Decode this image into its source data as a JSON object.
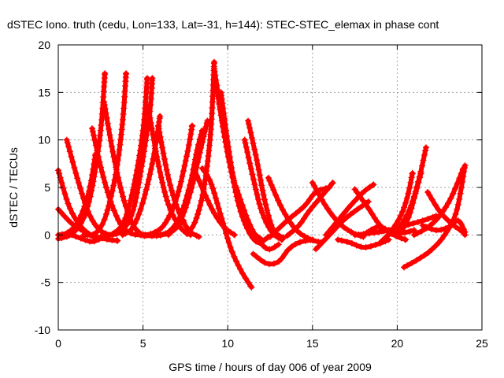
{
  "chart_data": {
    "type": "scatter",
    "title": "dSTEC Iono. truth (cedu, Lon=133, Lat=-31, h=144): STEC-STEC_elemax in phase cont",
    "xlabel": "GPS time / hours of day 006 of year 2009",
    "ylabel": "dSTEC  / TECUs",
    "xlim": [
      0,
      25
    ],
    "ylim": [
      -10,
      20
    ],
    "xticks": [
      0,
      5,
      10,
      15,
      20,
      25
    ],
    "yticks": [
      -10,
      -5,
      0,
      5,
      10,
      15,
      20
    ],
    "xtick_labels": [
      "0",
      "5",
      "10",
      "15",
      "20",
      "25"
    ],
    "ytick_labels": [
      "-10",
      "-5",
      "0",
      "5",
      "10",
      "15",
      "20"
    ],
    "grid": true,
    "marker": "+",
    "color": "#ff0000",
    "series": [
      {
        "x": [
          0.0,
          0.6,
          1.2,
          1.8,
          2.3
        ],
        "y": [
          6.8,
          3.2,
          1.2,
          0.1,
          -0.4
        ]
      },
      {
        "x": [
          0.0,
          0.8,
          1.6,
          2.3,
          3.0,
          3.5
        ],
        "y": [
          2.7,
          1.2,
          0.3,
          -0.2,
          -0.5,
          -0.6
        ]
      },
      {
        "x": [
          0.0,
          0.8,
          1.5,
          2.0,
          2.5,
          2.75
        ],
        "y": [
          -0.4,
          0.1,
          1.8,
          5.0,
          11.0,
          17.0
        ]
      },
      {
        "x": [
          0.5,
          1.2,
          1.8,
          2.4,
          3.0
        ],
        "y": [
          10.0,
          5.5,
          2.3,
          0.6,
          0.0
        ]
      },
      {
        "x": [
          0.8,
          1.4,
          2.0,
          2.6,
          3.2
        ],
        "y": [
          0.0,
          -0.4,
          -0.7,
          -0.3,
          0.1
        ]
      },
      {
        "x": [
          0.0,
          0.6,
          1.2,
          1.8,
          2.2
        ],
        "y": [
          0.0,
          0.3,
          1.5,
          4.5,
          8.5
        ]
      },
      {
        "x": [
          1.5,
          2.2,
          2.8,
          3.4,
          3.8,
          4.0
        ],
        "y": [
          0.0,
          0.2,
          2.0,
          6.5,
          12.0,
          17.0
        ]
      },
      {
        "x": [
          2.0,
          2.6,
          3.2,
          3.8,
          4.4,
          5.0
        ],
        "y": [
          11.2,
          6.5,
          3.0,
          0.8,
          0.1,
          0.0
        ]
      },
      {
        "x": [
          2.7,
          3.3,
          3.9,
          4.5,
          5.1
        ],
        "y": [
          14.0,
          8.0,
          3.5,
          0.8,
          -0.1
        ]
      },
      {
        "x": [
          2.5,
          3.2,
          3.9,
          4.5,
          5.0,
          5.25
        ],
        "y": [
          -0.2,
          0.1,
          1.5,
          5.5,
          11.0,
          16.5
        ]
      },
      {
        "x": [
          3.2,
          3.8,
          4.4,
          4.9,
          5.4,
          5.55
        ],
        "y": [
          0.0,
          0.5,
          2.5,
          7.0,
          13.0,
          16.5
        ]
      },
      {
        "x": [
          3.8,
          4.4,
          5.0,
          5.6,
          6.0
        ],
        "y": [
          0.0,
          0.8,
          3.5,
          8.0,
          12.5
        ]
      },
      {
        "x": [
          5.3,
          5.9,
          6.5,
          7.2,
          7.8
        ],
        "y": [
          13.5,
          7.5,
          3.2,
          0.8,
          0.0
        ]
      },
      {
        "x": [
          5.9,
          6.5,
          7.1,
          7.7,
          8.3
        ],
        "y": [
          11.5,
          6.0,
          2.5,
          0.5,
          -0.2
        ]
      },
      {
        "x": [
          5.0,
          5.6,
          6.2,
          6.8,
          7.4
        ],
        "y": [
          0.0,
          -0.1,
          0.1,
          0.5,
          1.5
        ]
      },
      {
        "x": [
          4.9,
          5.6,
          6.3,
          7.0,
          7.6,
          7.9
        ],
        "y": [
          0.0,
          0.2,
          1.2,
          4.0,
          8.5,
          11.5
        ]
      },
      {
        "x": [
          5.8,
          6.5,
          7.2,
          7.8,
          8.2,
          8.5
        ],
        "y": [
          -0.1,
          0.3,
          2.0,
          5.5,
          9.0,
          11.0
        ]
      },
      {
        "x": [
          6.5,
          7.2,
          7.8,
          8.4,
          8.8
        ],
        "y": [
          0.0,
          1.5,
          4.5,
          9.0,
          12.0
        ]
      },
      {
        "x": [
          8.0,
          8.6,
          9.2,
          9.8,
          10.4
        ],
        "y": [
          7.0,
          4.5,
          2.3,
          0.8,
          0.0
        ]
      },
      {
        "x": [
          7.6,
          8.1,
          8.6,
          9.0,
          9.2
        ],
        "y": [
          0.1,
          1.5,
          5.0,
          11.0,
          18.2
        ]
      },
      {
        "x": [
          9.2,
          9.6,
          10.0,
          10.5,
          11.0,
          11.5
        ],
        "y": [
          17.5,
          13.0,
          8.5,
          4.5,
          1.5,
          0.0
        ]
      },
      {
        "x": [
          9.3,
          9.8,
          10.4,
          11.0,
          11.5,
          12.0
        ],
        "y": [
          16.0,
          10.5,
          5.5,
          2.0,
          0.3,
          -0.5
        ]
      },
      {
        "x": [
          9.6,
          10.1,
          10.6,
          11.2,
          11.8,
          12.4
        ],
        "y": [
          15.0,
          8.5,
          3.5,
          0.5,
          -0.8,
          -0.2
        ]
      },
      {
        "x": [
          8.5,
          9.0,
          9.6,
          10.2,
          10.8,
          11.4
        ],
        "y": [
          7.0,
          5.5,
          2.0,
          -1.5,
          -3.8,
          -5.5
        ]
      },
      {
        "x": [
          11.0,
          11.5,
          12.0,
          12.6,
          13.2
        ],
        "y": [
          10.0,
          6.0,
          2.5,
          0.3,
          -0.5
        ]
      },
      {
        "x": [
          11.2,
          11.7,
          12.2,
          12.7,
          13.3
        ],
        "y": [
          12.0,
          8.0,
          3.5,
          0.5,
          -0.3
        ]
      },
      {
        "x": [
          10.5,
          11.2,
          11.8,
          12.4,
          13.0
        ],
        "y": [
          5.0,
          1.5,
          -0.5,
          -1.5,
          -1.0
        ]
      },
      {
        "x": [
          11.5,
          12.3,
          13.0,
          13.6,
          14.2,
          15.0
        ],
        "y": [
          -2.0,
          -3.0,
          -2.8,
          -1.5,
          -0.8,
          -0.5
        ]
      },
      {
        "x": [
          12.4,
          13.2,
          14.0,
          14.8,
          15.5
        ],
        "y": [
          6.0,
          2.8,
          0.6,
          -0.4,
          -0.8
        ]
      },
      {
        "x": [
          12.5,
          13.5,
          14.5,
          15.2,
          16.0
        ],
        "y": [
          -0.2,
          1.5,
          3.0,
          4.5,
          5.0
        ]
      },
      {
        "x": [
          13.5,
          14.2,
          14.8,
          15.5,
          16.2
        ],
        "y": [
          -0.1,
          1.0,
          2.5,
          4.0,
          5.5
        ]
      },
      {
        "x": [
          15.0,
          15.8,
          16.6,
          17.4,
          18.0
        ],
        "y": [
          5.5,
          3.0,
          1.2,
          0.2,
          -0.2
        ]
      },
      {
        "x": [
          15.2,
          16.0,
          16.8,
          17.5,
          18.3
        ],
        "y": [
          -1.5,
          0.0,
          1.5,
          2.5,
          3.5
        ]
      },
      {
        "x": [
          15.8,
          16.5,
          17.2,
          18.0,
          18.6
        ],
        "y": [
          0.0,
          1.5,
          3.0,
          4.5,
          5.3
        ]
      },
      {
        "x": [
          16.5,
          17.2,
          18.0,
          18.8,
          19.5
        ],
        "y": [
          -0.5,
          -0.8,
          -1.3,
          -1.0,
          -0.5
        ]
      },
      {
        "x": [
          17.5,
          18.3,
          19.0,
          19.8,
          20.5
        ],
        "y": [
          4.8,
          2.8,
          1.0,
          0.0,
          -0.5
        ]
      },
      {
        "x": [
          18.0,
          18.8,
          19.5,
          20.2,
          21.0
        ],
        "y": [
          0.0,
          0.8,
          0.5,
          0.2,
          0.5
        ]
      },
      {
        "x": [
          17.5,
          18.5,
          19.5,
          20.5,
          21.5,
          22.3
        ],
        "y": [
          0.0,
          0.2,
          0.5,
          1.0,
          1.5,
          2.0
        ]
      },
      {
        "x": [
          19.5,
          20.2,
          20.8,
          21.3,
          21.7
        ],
        "y": [
          0.0,
          1.0,
          3.0,
          6.0,
          9.2
        ]
      },
      {
        "x": [
          20.3,
          20.7,
          21.1,
          21.4
        ],
        "y": [
          0.5,
          2.0,
          4.5,
          6.5
        ]
      },
      {
        "x": [
          19.0,
          19.6,
          20.2,
          20.6,
          20.9
        ],
        "y": [
          -0.8,
          0.3,
          2.0,
          4.0,
          6.5
        ]
      },
      {
        "x": [
          20.4,
          21.2,
          22.0,
          22.8,
          23.5,
          24.0
        ],
        "y": [
          -3.4,
          -2.6,
          -1.6,
          0.0,
          2.5,
          7.3
        ]
      },
      {
        "x": [
          21.0,
          21.8,
          22.5,
          23.2,
          23.9
        ],
        "y": [
          0.0,
          0.8,
          2.0,
          4.0,
          7.0
        ]
      },
      {
        "x": [
          21.8,
          22.5,
          23.2,
          23.8,
          24.0
        ],
        "y": [
          4.5,
          2.5,
          1.2,
          0.4,
          0.0
        ]
      },
      {
        "x": [
          21.5,
          22.3,
          23.0,
          23.6,
          24.0
        ],
        "y": [
          1.0,
          0.5,
          0.8,
          1.5,
          0.3
        ]
      }
    ]
  }
}
